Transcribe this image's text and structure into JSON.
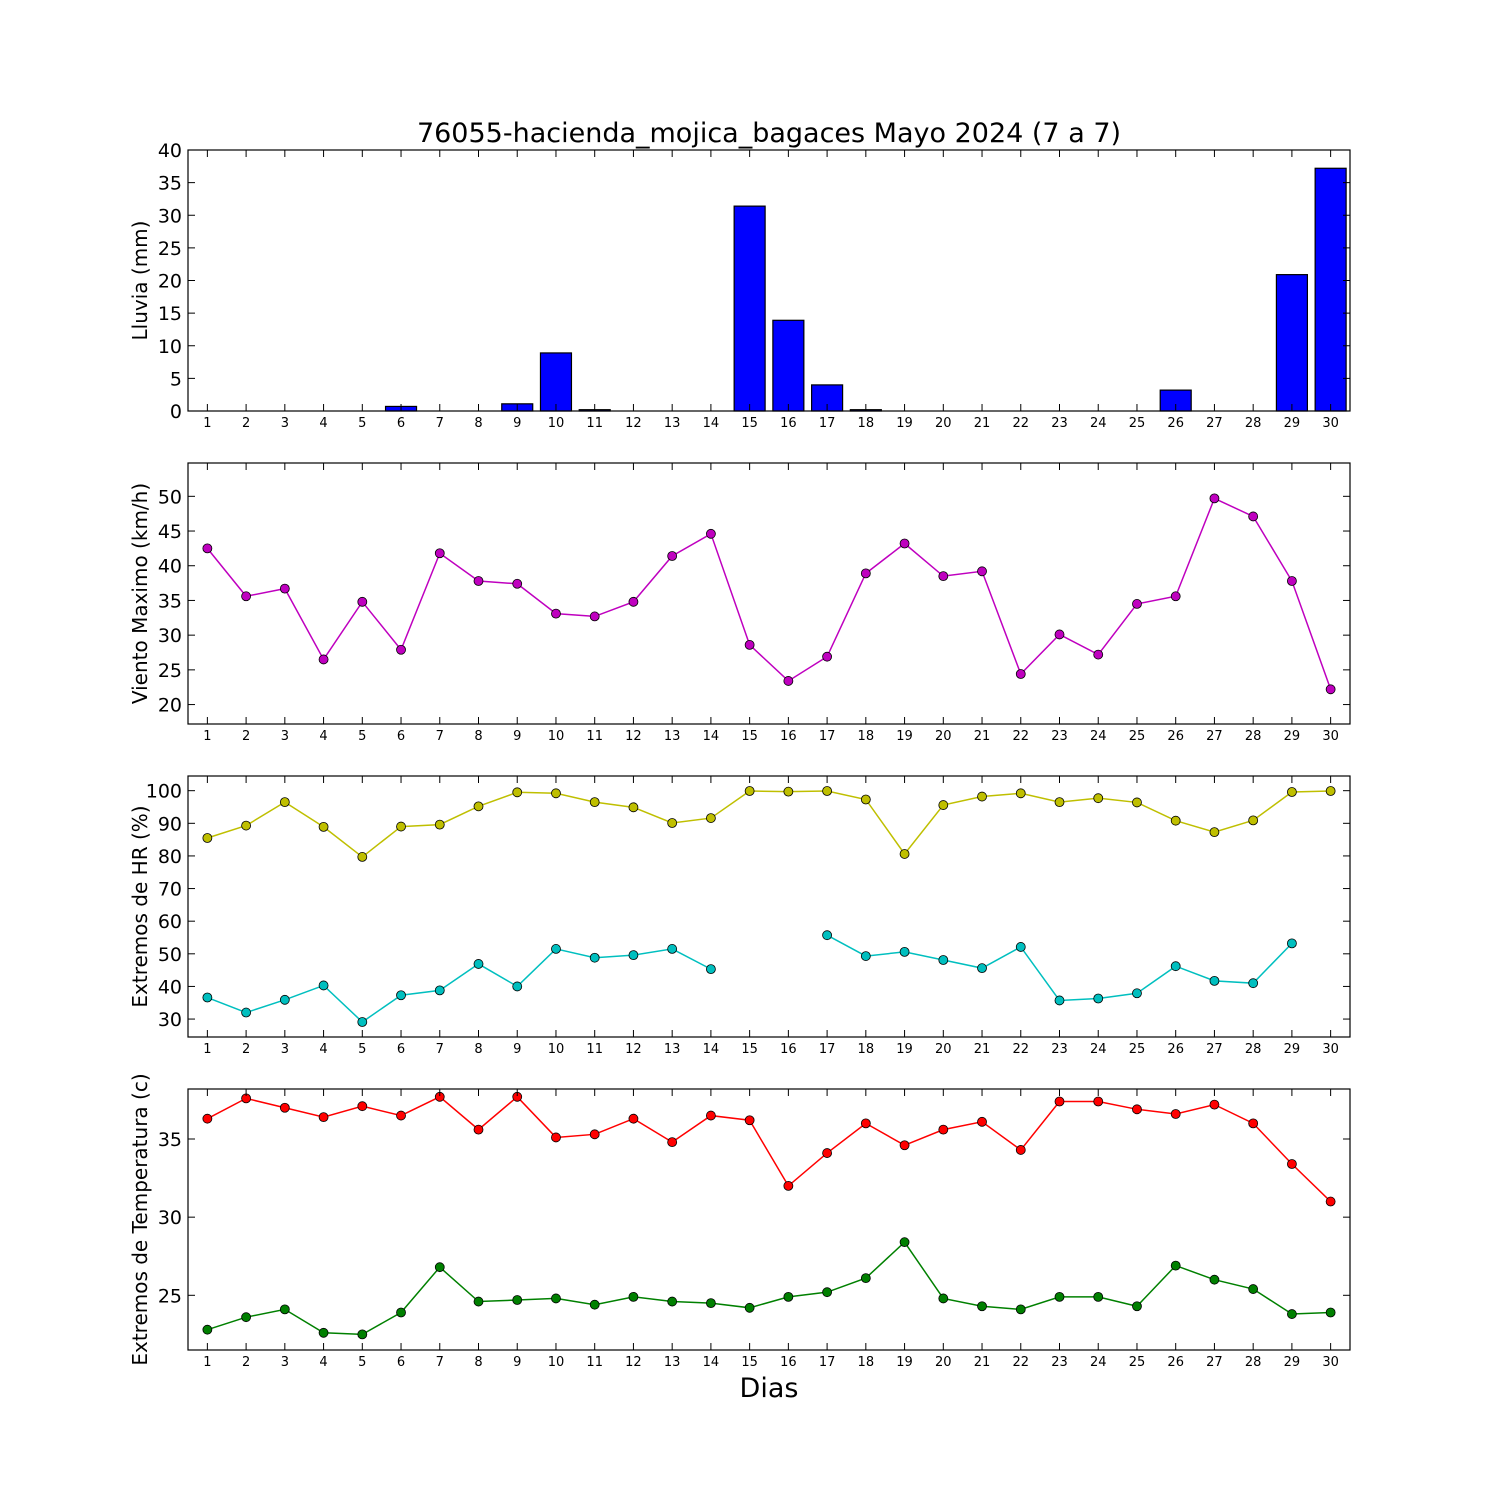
{
  "title": "76055-hacienda_mojica_bagaces Mayo 2024  (7 a 7)",
  "xlabel": "Dias",
  "days": [
    1,
    2,
    3,
    4,
    5,
    6,
    7,
    8,
    9,
    10,
    11,
    12,
    13,
    14,
    15,
    16,
    17,
    18,
    19,
    20,
    21,
    22,
    23,
    24,
    25,
    26,
    27,
    28,
    29,
    30
  ],
  "chart_data": [
    {
      "type": "bar",
      "ylabel": "Lluvia (mm)",
      "ylim": [
        0,
        40
      ],
      "yticks": [
        0,
        5,
        10,
        15,
        20,
        25,
        30,
        35,
        40
      ],
      "series": [
        {
          "color": "#0000ff",
          "values": [
            0,
            0,
            0,
            0,
            0,
            0.7,
            0,
            0,
            1.1,
            8.9,
            0.2,
            0,
            0,
            0,
            31.4,
            13.9,
            4.0,
            0.2,
            0,
            0,
            0,
            0,
            0,
            0,
            0,
            3.2,
            0,
            0,
            20.9,
            37.2
          ]
        }
      ]
    },
    {
      "type": "line",
      "ylabel": "Viento Maximo (km/h)",
      "ylim": [
        17.2,
        54.8
      ],
      "yticks": [
        20,
        25,
        30,
        35,
        40,
        45,
        50
      ],
      "series": [
        {
          "color": "#bf00bf",
          "values": [
            42.5,
            35.6,
            36.7,
            26.5,
            34.8,
            27.9,
            41.8,
            37.8,
            37.4,
            33.1,
            32.7,
            34.8,
            41.4,
            44.6,
            28.6,
            23.4,
            26.9,
            38.9,
            43.2,
            38.5,
            39.2,
            24.4,
            30.1,
            27.2,
            34.5,
            35.6,
            49.7,
            47.1,
            37.8,
            22.2
          ]
        }
      ]
    },
    {
      "type": "line",
      "ylabel": "Extremos de HR (%)",
      "ylim": [
        24.5,
        104.5
      ],
      "yticks": [
        30,
        40,
        50,
        60,
        70,
        80,
        90,
        100
      ],
      "series": [
        {
          "color": "#bfbf00",
          "values": [
            85.5,
            89.3,
            96.5,
            88.9,
            79.7,
            89.0,
            89.6,
            95.2,
            99.5,
            99.2,
            96.5,
            94.9,
            90.1,
            91.6,
            99.9,
            99.7,
            99.9,
            97.3,
            80.6,
            95.6,
            98.2,
            99.2,
            96.5,
            97.7,
            96.4,
            90.8,
            87.3,
            90.9,
            99.6,
            99.9
          ]
        },
        {
          "color": "#00bfbf",
          "values": [
            36.6,
            32.0,
            35.9,
            40.3,
            29.1,
            37.3,
            38.8,
            46.9,
            40.0,
            51.5,
            48.8,
            49.6,
            51.5,
            45.3,
            null,
            null,
            55.7,
            49.3,
            50.6,
            48.1,
            45.6,
            52.1,
            35.7,
            36.3,
            37.9,
            46.2,
            41.7,
            41.0,
            53.2,
            null
          ]
        }
      ]
    },
    {
      "type": "line",
      "ylabel": "Extremos de Temperatura (c)",
      "ylim": [
        21.5,
        38.2
      ],
      "yticks": [
        25,
        30,
        35
      ],
      "series": [
        {
          "color": "#ff0000",
          "values": [
            36.3,
            37.6,
            37.0,
            36.4,
            37.1,
            36.5,
            37.7,
            35.6,
            37.7,
            35.1,
            35.3,
            36.3,
            34.8,
            36.5,
            36.2,
            32.0,
            34.1,
            36.0,
            34.6,
            35.6,
            36.1,
            34.3,
            37.4,
            37.4,
            36.9,
            36.6,
            37.2,
            36.0,
            33.4,
            31.0
          ]
        },
        {
          "color": "#008000",
          "values": [
            22.8,
            23.6,
            24.1,
            22.6,
            22.5,
            23.9,
            26.8,
            24.6,
            24.7,
            24.8,
            24.4,
            24.9,
            24.6,
            24.5,
            24.2,
            24.9,
            25.2,
            26.1,
            28.4,
            24.8,
            24.3,
            24.1,
            24.9,
            24.9,
            24.3,
            26.9,
            26.0,
            25.4,
            23.8,
            23.9
          ]
        }
      ]
    }
  ]
}
